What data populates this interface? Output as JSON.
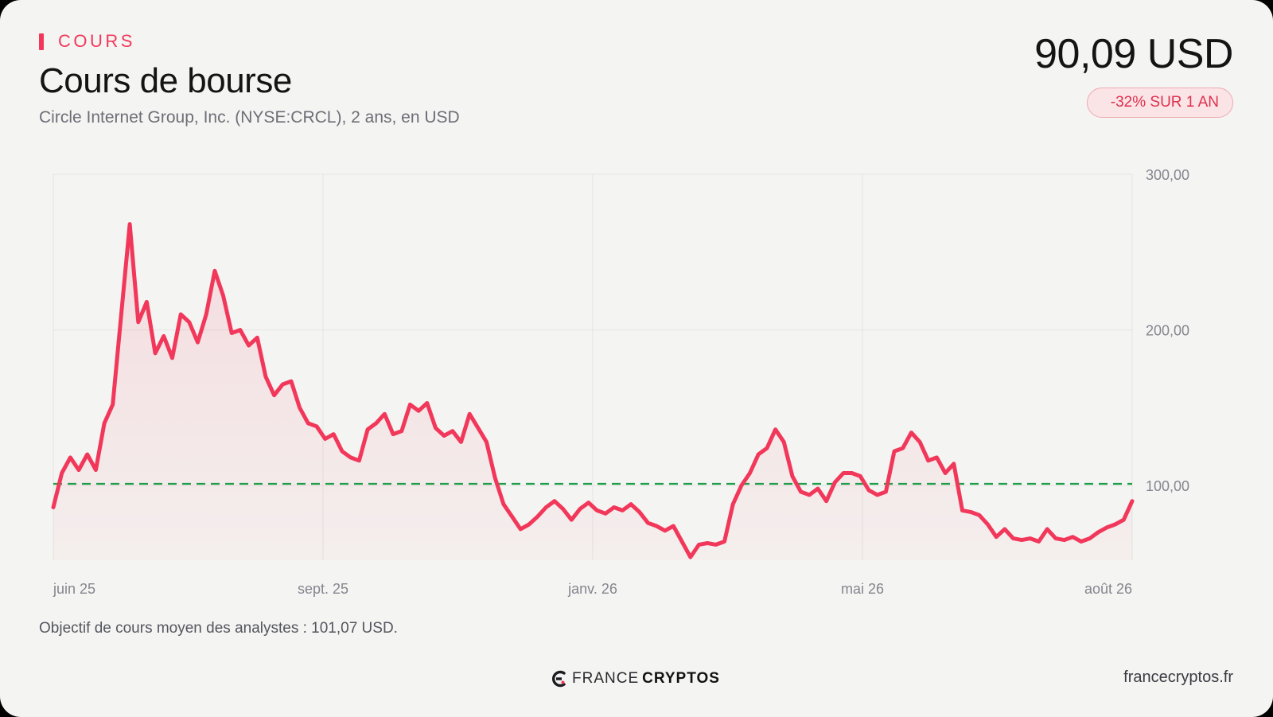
{
  "header": {
    "eyebrow": "COURS",
    "title": "Cours de bourse",
    "subtitle": "Circle Internet Group, Inc. (NYSE:CRCL), 2 ans, en USD",
    "price": "90,09 USD",
    "change": "-32% SUR 1 AN"
  },
  "footer": {
    "note": "Objectif de cours moyen des analystes : 101,07 USD.",
    "brand_light": "FRANCE",
    "brand_bold": "CRYPTOS",
    "site": "francecryptos.fr"
  },
  "colors": {
    "line": "#f2385a",
    "target": "#1e9e4a",
    "accent": "#f2385a"
  },
  "chart_data": {
    "type": "line",
    "title": "Cours de bourse",
    "xlabel": "",
    "ylabel": "",
    "ylim": [
      52,
      300
    ],
    "y_ticks": [
      {
        "value": 300,
        "label": "300,00"
      },
      {
        "value": 200,
        "label": "200,00"
      },
      {
        "value": 100,
        "label": "100,00"
      }
    ],
    "x_ticks": [
      "juin 25",
      "sept. 25",
      "janv. 26",
      "mai 26",
      "août 26"
    ],
    "grid": true,
    "target_line": {
      "value": 101.07,
      "style": "dashed"
    },
    "series": [
      {
        "values": [
          86,
          108,
          118,
          110,
          120,
          110,
          140,
          152,
          210,
          268,
          205,
          218,
          185,
          196,
          182,
          210,
          205,
          192,
          210,
          238,
          222,
          198,
          200,
          190,
          195,
          170,
          158,
          165,
          167,
          150,
          140,
          138,
          130,
          133,
          122,
          118,
          116,
          136,
          140,
          146,
          133,
          135,
          152,
          148,
          153,
          137,
          132,
          135,
          128,
          146,
          137,
          128,
          105,
          88,
          80,
          72,
          75,
          80,
          86,
          90,
          85,
          78,
          85,
          89,
          84,
          82,
          86,
          84,
          88,
          83,
          76,
          74,
          71,
          74,
          64,
          54,
          62,
          63,
          62,
          64,
          88,
          100,
          108,
          120,
          124,
          136,
          128,
          106,
          96,
          94,
          98,
          90,
          102,
          108,
          108,
          106,
          97,
          94,
          96,
          122,
          124,
          134,
          128,
          116,
          118,
          108,
          114,
          84,
          83,
          81,
          75,
          67,
          72,
          66,
          65,
          66,
          64,
          72,
          66,
          65,
          67,
          64,
          66,
          70,
          73,
          75,
          78,
          90
        ]
      }
    ]
  }
}
